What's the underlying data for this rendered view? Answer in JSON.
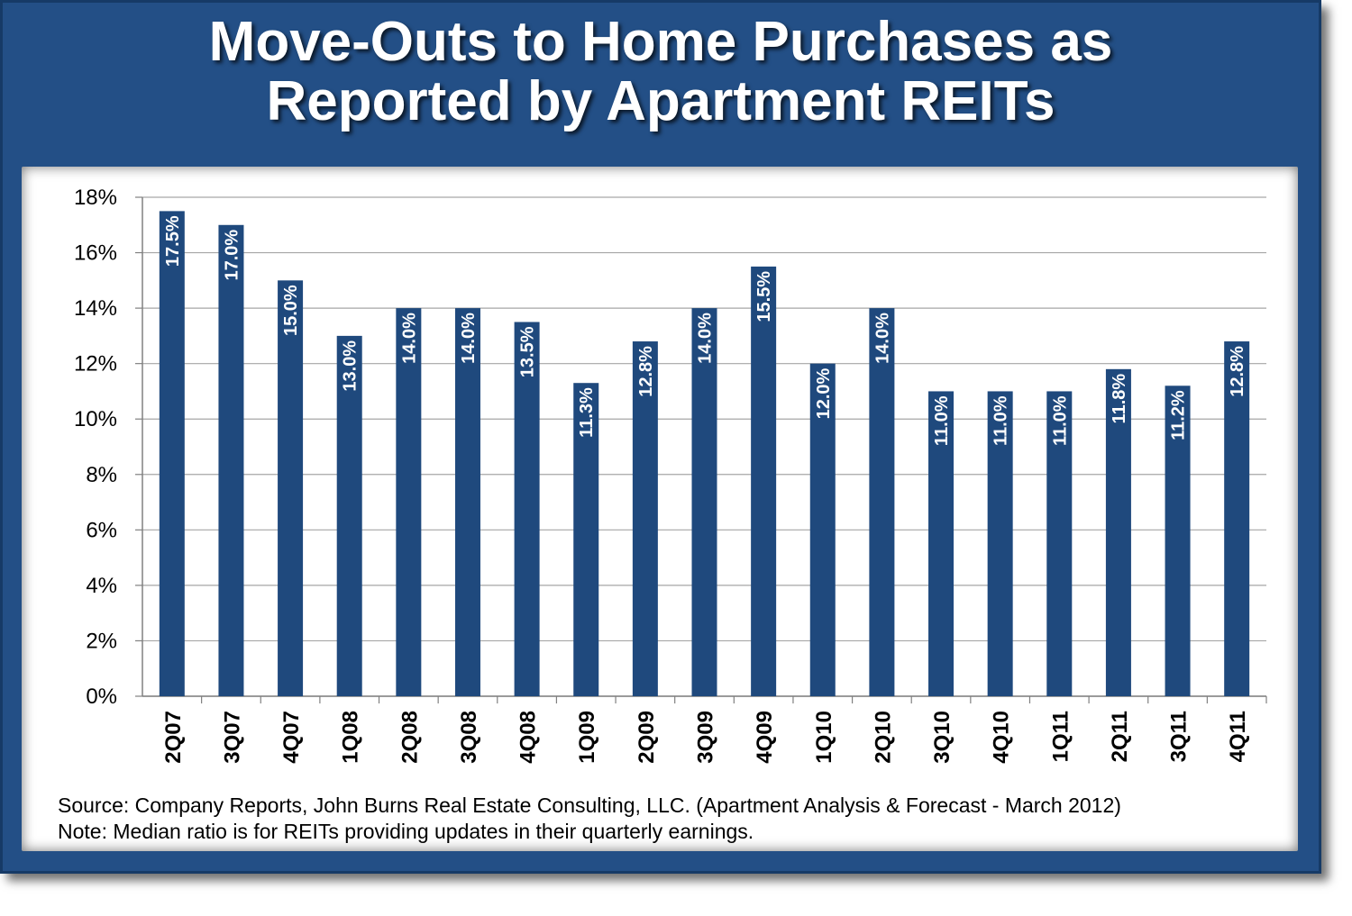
{
  "title_lines": [
    "Move-Outs to Home Purchases as",
    "Reported by Apartment REITs"
  ],
  "colors": {
    "frame": "#234f86",
    "bar": "#1f497d",
    "bar_label": "#ffffff",
    "grid": "#a6a6a6"
  },
  "chart_data": {
    "type": "bar",
    "title": "Move-Outs to Home Purchases as Reported by Apartment REITs",
    "xlabel": "",
    "ylabel": "",
    "ylim": [
      0,
      18
    ],
    "y_ticks": [
      "0%",
      "2%",
      "4%",
      "6%",
      "8%",
      "10%",
      "12%",
      "14%",
      "16%",
      "18%"
    ],
    "y_tick_values": [
      0,
      2,
      4,
      6,
      8,
      10,
      12,
      14,
      16,
      18
    ],
    "grid": true,
    "legend": "none",
    "categories": [
      "2Q07",
      "3Q07",
      "4Q07",
      "1Q08",
      "2Q08",
      "3Q08",
      "4Q08",
      "1Q09",
      "2Q09",
      "3Q09",
      "4Q09",
      "1Q10",
      "2Q10",
      "3Q10",
      "4Q10",
      "1Q11",
      "2Q11",
      "3Q11",
      "4Q11"
    ],
    "values": [
      17.5,
      17.0,
      15.0,
      13.0,
      14.0,
      14.0,
      13.5,
      11.3,
      12.8,
      14.0,
      15.5,
      12.0,
      14.0,
      11.0,
      11.0,
      11.0,
      11.8,
      11.2,
      12.8
    ],
    "labels": [
      "17.5%",
      "17.0%",
      "15.0%",
      "13.0%",
      "14.0%",
      "14.0%",
      "13.5%",
      "11.3%",
      "12.8%",
      "14.0%",
      "15.5%",
      "12.0%",
      "14.0%",
      "11.0%",
      "11.0%",
      "11.0%",
      "11.8%",
      "11.2%",
      "12.8%"
    ]
  },
  "footnote": {
    "source": "Source:  Company Reports, John Burns Real Estate Consulting, LLC. (Apartment Analysis & Forecast - March 2012)",
    "note": "Note:  Median ratio is for REITs providing updates in their quarterly earnings."
  }
}
